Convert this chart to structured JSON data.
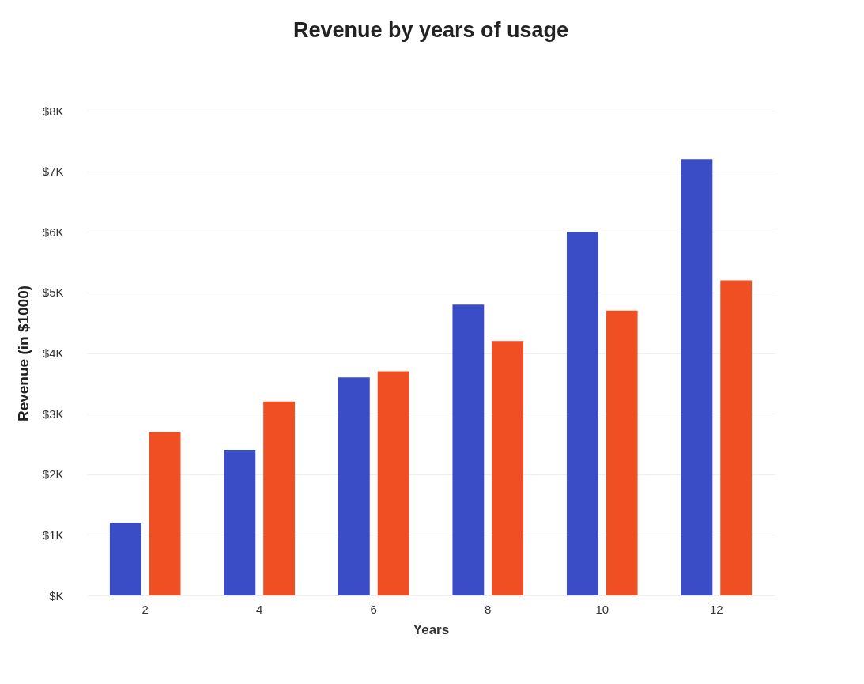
{
  "chart_data": {
    "type": "bar",
    "title": "Revenue by years of usage",
    "xlabel": "Years",
    "ylabel": "Revenue (in $1000)",
    "categories": [
      "2",
      "4",
      "6",
      "8",
      "10",
      "12"
    ],
    "series": [
      {
        "color": "#3a4cc6",
        "values": [
          1.2,
          2.4,
          3.6,
          4.8,
          6.0,
          7.2
        ]
      },
      {
        "color": "#f04e23",
        "values": [
          2.7,
          3.2,
          3.7,
          4.2,
          4.7,
          5.2
        ]
      }
    ],
    "ylim": [
      0,
      8
    ],
    "yticks": [
      {
        "value": 0,
        "label": "$K"
      },
      {
        "value": 1,
        "label": "$1K"
      },
      {
        "value": 2,
        "label": "$2K"
      },
      {
        "value": 3,
        "label": "$3K"
      },
      {
        "value": 4,
        "label": "$4K"
      },
      {
        "value": 5,
        "label": "$5K"
      },
      {
        "value": 6,
        "label": "$6K"
      },
      {
        "value": 7,
        "label": "$7K"
      },
      {
        "value": 8,
        "label": "$8K"
      }
    ],
    "grid": "y"
  }
}
